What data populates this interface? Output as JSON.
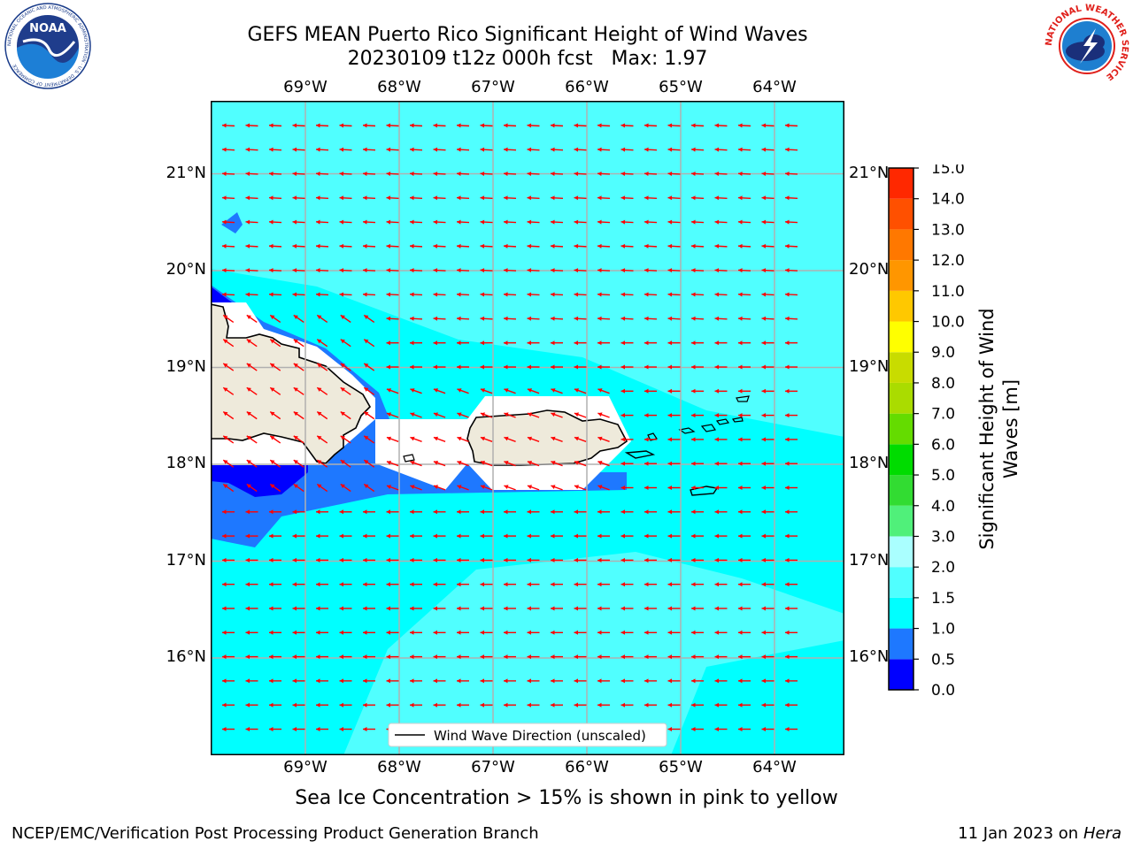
{
  "header": {
    "title_line1": "GEFS MEAN Puerto Rico Significant Height of Wind Waves",
    "title_line2": "20230109 t12z 000h fcst   Max: 1.97",
    "left_logo": "NOAA",
    "left_logo_ring_text": "NATIONAL OCEANIC AND ATMOSPHERIC ADMINISTRATION · U.S. DEPARTMENT OF COMMERCE",
    "right_logo_ring_text": "NATIONAL WEATHER SERVICE"
  },
  "map": {
    "lon_labels": [
      "69°W",
      "68°W",
      "67°W",
      "66°W",
      "65°W",
      "64°W"
    ],
    "lat_labels": [
      "21°N",
      "20°N",
      "19°N",
      "18°N",
      "17°N",
      "16°N"
    ],
    "lon_values": [
      -69,
      -68,
      -67,
      -66,
      -65,
      -64
    ],
    "lat_values": [
      21,
      20,
      19,
      18,
      17,
      16
    ],
    "legend_label": "Wind Wave Direction (unscaled)",
    "arrow_color": "#ff0000",
    "land_color": "#eeeadb",
    "ocean_color": "#00ffff"
  },
  "colorbar": {
    "label": "Significant Height of Wind Waves [m]",
    "ticks": [
      "0.0",
      "0.5",
      "1.0",
      "1.5",
      "2.0",
      "3.0",
      "4.0",
      "5.0",
      "6.0",
      "7.0",
      "8.0",
      "9.0",
      "10.0",
      "11.0",
      "12.0",
      "13.0",
      "14.0",
      "15.0"
    ],
    "colors": [
      "#0000ff",
      "#1e78ff",
      "#00ffff",
      "#50ffff",
      "#aaffff",
      "#50f07a",
      "#32dc32",
      "#00dc00",
      "#64dc00",
      "#aadc00",
      "#c8dc00",
      "#ffff00",
      "#ffc800",
      "#ff9600",
      "#ff7800",
      "#ff5000",
      "#ff2800",
      "#ff0000"
    ]
  },
  "caption": "Sea Ice Concentration > 15% is shown in pink to yellow",
  "footer": {
    "left": "NCEP/EMC/Verification Post Processing Product Generation Branch",
    "right_date": "11 Jan 2023 on ",
    "right_machine": "Hera"
  }
}
